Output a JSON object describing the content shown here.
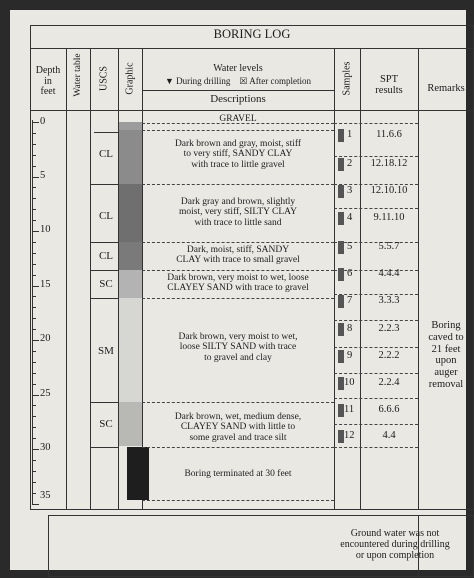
{
  "title": "BORING LOG",
  "headers": {
    "depth": [
      "Depth",
      "in",
      "feet"
    ],
    "water_table": [
      "Water",
      "table"
    ],
    "uscs": "USCS",
    "graphic": "Graphic",
    "water_levels": "Water levels",
    "during_drilling": "▼ During drilling",
    "after_completion": "☒ After completion",
    "descriptions": "Descriptions",
    "samples": "Samples",
    "spt": [
      "SPT",
      "results"
    ],
    "remarks": "Remarks"
  },
  "depth_labels": [
    "0",
    "5",
    "10",
    "15",
    "20",
    "25",
    "30",
    "35"
  ],
  "layers": [
    {
      "uscs": "",
      "description": [
        "GRAVEL"
      ]
    },
    {
      "uscs": "CL",
      "description": [
        "Dark brown and gray, moist, stiff",
        "to very stiff, SANDY CLAY",
        "with trace to little gravel"
      ]
    },
    {
      "uscs": "CL",
      "description": [
        "Dark gray and brown, slightly",
        "moist, very stiff, SILTY CLAY",
        "with trace to little sand"
      ]
    },
    {
      "uscs": "CL",
      "description": [
        "Dark, moist, stiff, SANDY",
        "CLAY with trace to small gravel"
      ]
    },
    {
      "uscs": "SC",
      "description": [
        "Dark brown, very moist to wet, loose",
        "CLAYEY SAND with trace to gravel"
      ]
    },
    {
      "uscs": "SM",
      "description": [
        "Dark brown, very moist to wet,",
        "loose SILTY SAND with trace",
        "to gravel and clay"
      ]
    },
    {
      "uscs": "SC",
      "description": [
        "Dark brown, wet, medium dense,",
        "CLAYEY SAND with little to",
        "some gravel and trace silt"
      ]
    },
    {
      "uscs": "",
      "description": [
        "Boring terminated at 30 feet"
      ]
    }
  ],
  "samples": [
    {
      "num": "1",
      "spt": "11.6.6"
    },
    {
      "num": "2",
      "spt": "12.18.12"
    },
    {
      "num": "3",
      "spt": "12.10.10"
    },
    {
      "num": "4",
      "spt": "9.11.10"
    },
    {
      "num": "5",
      "spt": "5.5.7"
    },
    {
      "num": "6",
      "spt": "4.4.4"
    },
    {
      "num": "7",
      "spt": "3.3.3"
    },
    {
      "num": "8",
      "spt": "2.2.3"
    },
    {
      "num": "9",
      "spt": "2.2.2"
    },
    {
      "num": "10",
      "spt": "2.2.4"
    },
    {
      "num": "11",
      "spt": "6.6.6"
    },
    {
      "num": "12",
      "spt": "4.4"
    }
  ],
  "remarks": [
    "Boring",
    "caved to",
    "21 feet",
    "upon",
    "auger",
    "removal"
  ],
  "footer_note": [
    "Ground water was not",
    "encountered during drilling",
    "or upon completion"
  ]
}
